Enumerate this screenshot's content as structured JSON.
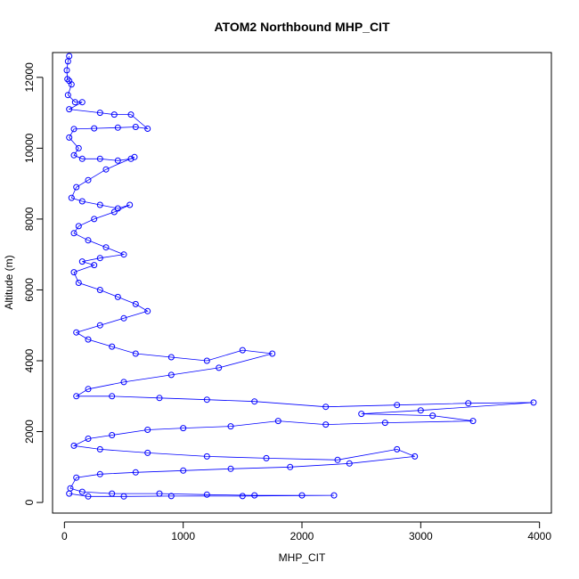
{
  "chart_data": {
    "type": "scatter",
    "title": "ATOM2 Northbound MHP_CIT",
    "xlabel": "MHP_CIT",
    "ylabel": "Altitude (m)",
    "xlim": [
      -100,
      4100
    ],
    "ylim": [
      -300,
      12700
    ],
    "x_ticks": [
      {
        "value": 0,
        "label": "0"
      },
      {
        "value": 1000,
        "label": "1000"
      },
      {
        "value": 2000,
        "label": "2000"
      },
      {
        "value": 3000,
        "label": "3000"
      },
      {
        "value": 4000,
        "label": "4000"
      }
    ],
    "y_ticks": [
      {
        "value": 0,
        "label": "0"
      },
      {
        "value": 2000,
        "label": "2000"
      },
      {
        "value": 4000,
        "label": "4000"
      },
      {
        "value": 6000,
        "label": "6000"
      },
      {
        "value": 8000,
        "label": "8000"
      },
      {
        "value": 10000,
        "label": "10000"
      },
      {
        "value": 12000,
        "label": "12000"
      }
    ],
    "marker": "open-circle",
    "connected": true,
    "color": "#0000ff",
    "series": [
      {
        "points": [
          [
            40,
            12600
          ],
          [
            30,
            12450
          ],
          [
            20,
            12200
          ],
          [
            25,
            11950
          ],
          [
            40,
            11900
          ],
          [
            60,
            11800
          ],
          [
            30,
            11500
          ],
          [
            90,
            11300
          ],
          [
            150,
            11300
          ],
          [
            40,
            11100
          ],
          [
            300,
            11000
          ],
          [
            420,
            10950
          ],
          [
            560,
            10950
          ],
          [
            700,
            10550
          ],
          [
            600,
            10600
          ],
          [
            450,
            10580
          ],
          [
            250,
            10560
          ],
          [
            80,
            10540
          ],
          [
            40,
            10300
          ],
          [
            120,
            10000
          ],
          [
            80,
            9800
          ],
          [
            150,
            9700
          ],
          [
            300,
            9700
          ],
          [
            450,
            9650
          ],
          [
            560,
            9700
          ],
          [
            590,
            9750
          ],
          [
            350,
            9400
          ],
          [
            200,
            9100
          ],
          [
            100,
            8900
          ],
          [
            60,
            8600
          ],
          [
            150,
            8500
          ],
          [
            300,
            8400
          ],
          [
            450,
            8300
          ],
          [
            550,
            8400
          ],
          [
            420,
            8200
          ],
          [
            250,
            8000
          ],
          [
            120,
            7800
          ],
          [
            80,
            7600
          ],
          [
            200,
            7400
          ],
          [
            350,
            7200
          ],
          [
            500,
            7000
          ],
          [
            300,
            6900
          ],
          [
            150,
            6800
          ],
          [
            250,
            6700
          ],
          [
            80,
            6500
          ],
          [
            120,
            6200
          ],
          [
            300,
            6000
          ],
          [
            450,
            5800
          ],
          [
            600,
            5600
          ],
          [
            700,
            5400
          ],
          [
            500,
            5200
          ],
          [
            300,
            5000
          ],
          [
            100,
            4800
          ],
          [
            200,
            4600
          ],
          [
            400,
            4400
          ],
          [
            600,
            4200
          ],
          [
            900,
            4100
          ],
          [
            1200,
            4000
          ],
          [
            1500,
            4300
          ],
          [
            1750,
            4200
          ],
          [
            1300,
            3800
          ],
          [
            900,
            3600
          ],
          [
            500,
            3400
          ],
          [
            200,
            3200
          ],
          [
            100,
            3000
          ],
          [
            400,
            3000
          ],
          [
            800,
            2950
          ],
          [
            1200,
            2900
          ],
          [
            1600,
            2850
          ],
          [
            2200,
            2700
          ],
          [
            2800,
            2750
          ],
          [
            3400,
            2800
          ],
          [
            3950,
            2820
          ],
          [
            3000,
            2600
          ],
          [
            2500,
            2500
          ],
          [
            3100,
            2450
          ],
          [
            3440,
            2300
          ],
          [
            2700,
            2250
          ],
          [
            2200,
            2200
          ],
          [
            1800,
            2300
          ],
          [
            1400,
            2150
          ],
          [
            1000,
            2100
          ],
          [
            700,
            2050
          ],
          [
            400,
            1900
          ],
          [
            200,
            1800
          ],
          [
            80,
            1600
          ],
          [
            300,
            1500
          ],
          [
            700,
            1400
          ],
          [
            1200,
            1300
          ],
          [
            1700,
            1250
          ],
          [
            2300,
            1200
          ],
          [
            2800,
            1500
          ],
          [
            2950,
            1300
          ],
          [
            2400,
            1100
          ],
          [
            1900,
            1000
          ],
          [
            1400,
            950
          ],
          [
            1000,
            900
          ],
          [
            600,
            850
          ],
          [
            300,
            800
          ],
          [
            100,
            700
          ],
          [
            50,
            400
          ],
          [
            150,
            300
          ],
          [
            400,
            250
          ],
          [
            800,
            250
          ],
          [
            1200,
            220
          ],
          [
            1600,
            200
          ],
          [
            2000,
            200
          ],
          [
            2270,
            200
          ],
          [
            1500,
            180
          ],
          [
            900,
            180
          ],
          [
            500,
            170
          ],
          [
            200,
            170
          ],
          [
            40,
            250
          ]
        ]
      }
    ]
  }
}
